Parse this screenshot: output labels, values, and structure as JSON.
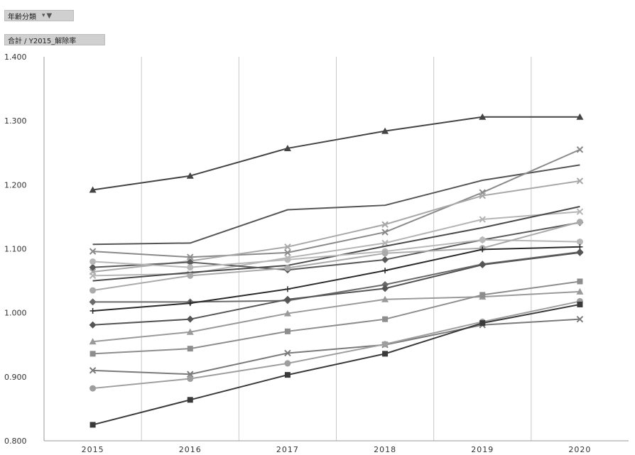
{
  "filter_button": {
    "label": "年齢分類",
    "dropdown_icon": "dropdown-arrow-icon",
    "filter_icon": "funnel-icon"
  },
  "value_button": {
    "label": "合計 / Y2015_解除率"
  },
  "chart_data": {
    "type": "line",
    "categories": [
      "2015",
      "2016",
      "2017",
      "2018",
      "2019",
      "2020"
    ],
    "ylim": [
      0.8,
      1.4
    ],
    "yticks": [
      "0.800",
      "0.900",
      "1.000",
      "1.100",
      "1.200",
      "1.300",
      "1.400"
    ],
    "grid": "vertical",
    "legend": "none",
    "series": [
      {
        "marker": "triangle",
        "color": "#444444",
        "values": [
          1.192,
          1.214,
          1.257,
          1.284,
          1.306,
          1.306
        ]
      },
      {
        "marker": "none",
        "color": "#555555",
        "values": [
          1.107,
          1.109,
          1.161,
          1.168,
          1.207,
          1.231
        ]
      },
      {
        "marker": "x",
        "color": "#8a8a8a",
        "values": [
          1.096,
          1.087,
          1.094,
          1.126,
          1.188,
          1.255
        ]
      },
      {
        "marker": "x",
        "color": "#a8a8a8",
        "values": [
          1.064,
          1.081,
          1.103,
          1.138,
          1.183,
          1.206
        ]
      },
      {
        "marker": "x",
        "color": "#b5b5b5",
        "values": [
          1.058,
          1.061,
          1.086,
          1.109,
          1.146,
          1.158
        ]
      },
      {
        "marker": "none",
        "color": "#4a4a4a",
        "values": [
          1.05,
          1.063,
          1.074,
          1.104,
          1.133,
          1.166
        ]
      },
      {
        "marker": "diamond",
        "color": "#5a5a5a",
        "values": [
          1.071,
          1.079,
          1.067,
          1.083,
          1.114,
          1.141
        ]
      },
      {
        "marker": "circle",
        "color": "#b8b8b8",
        "values": [
          1.08,
          1.071,
          1.083,
          1.096,
          1.114,
          1.111
        ]
      },
      {
        "marker": "circle",
        "color": "#aaaaaa",
        "values": [
          1.035,
          1.058,
          1.07,
          1.093,
          1.101,
          1.142
        ]
      },
      {
        "marker": "diamond",
        "color": "#6a6a6a",
        "values": [
          1.017,
          1.017,
          1.019,
          1.044,
          1.076,
          1.095
        ]
      },
      {
        "marker": "plus",
        "color": "#2a2a2a",
        "values": [
          1.003,
          1.015,
          1.037,
          1.066,
          1.099,
          1.103
        ]
      },
      {
        "marker": "diamond",
        "color": "#555555",
        "values": [
          0.981,
          0.99,
          1.021,
          1.038,
          1.075,
          1.094
        ]
      },
      {
        "marker": "triangle",
        "color": "#9a9a9a",
        "values": [
          0.955,
          0.97,
          0.999,
          1.021,
          1.025,
          1.033
        ]
      },
      {
        "marker": "square",
        "color": "#8d8d8d",
        "values": [
          0.936,
          0.944,
          0.971,
          0.99,
          1.028,
          1.049
        ]
      },
      {
        "marker": "x",
        "color": "#7a7a7a",
        "values": [
          0.91,
          0.904,
          0.937,
          0.95,
          0.981,
          0.99
        ]
      },
      {
        "marker": "circle",
        "color": "#9e9e9e",
        "values": [
          0.882,
          0.897,
          0.921,
          0.951,
          0.986,
          1.018
        ]
      },
      {
        "marker": "square",
        "color": "#3a3a3a",
        "values": [
          0.825,
          0.864,
          0.903,
          0.936,
          0.984,
          1.013
        ]
      }
    ]
  }
}
